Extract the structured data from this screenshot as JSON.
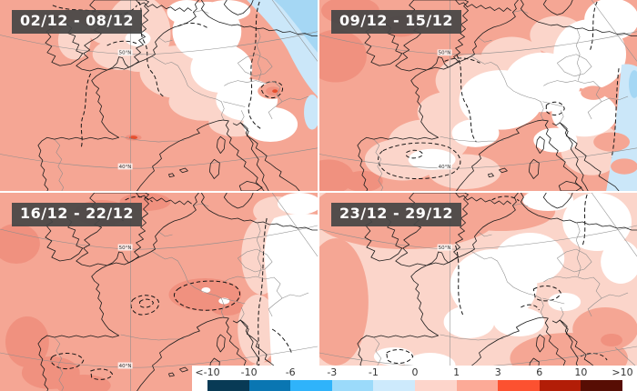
{
  "panels": [
    {
      "label": "02/12 - 08/12"
    },
    {
      "label": "09/12 - 15/12"
    },
    {
      "label": "16/12 - 22/12"
    },
    {
      "label": "23/12 - 29/12"
    }
  ],
  "map": {
    "lat_labels": {
      "lat50": "50°N",
      "lat40": "40°N"
    }
  },
  "legend": {
    "tick_labels": [
      "<-10",
      "-10",
      "-6",
      "-3",
      "-1",
      "0",
      "1",
      "3",
      "6",
      "10",
      ">10"
    ],
    "segment_colors": [
      "#083a55",
      "#0a76b2",
      "#2fb3fa",
      "#9bdafa",
      "#cdeafc",
      "#fdd5cb",
      "#fcaa97",
      "#fc5130",
      "#b21d07",
      "#570d04"
    ]
  },
  "map_palette": {
    "anomaly_plus_1_3": "#f5a694",
    "anomaly_plus_0_1": "#fbd5ca",
    "anomaly_plus_3_6": "#f0917f",
    "anomaly_spot_red": "#e64f2e",
    "anomaly_minus_0_1": "#cbe7f9",
    "anomaly_minus_1_3": "#a5d7f4",
    "zero_band": "#ffffff"
  }
}
